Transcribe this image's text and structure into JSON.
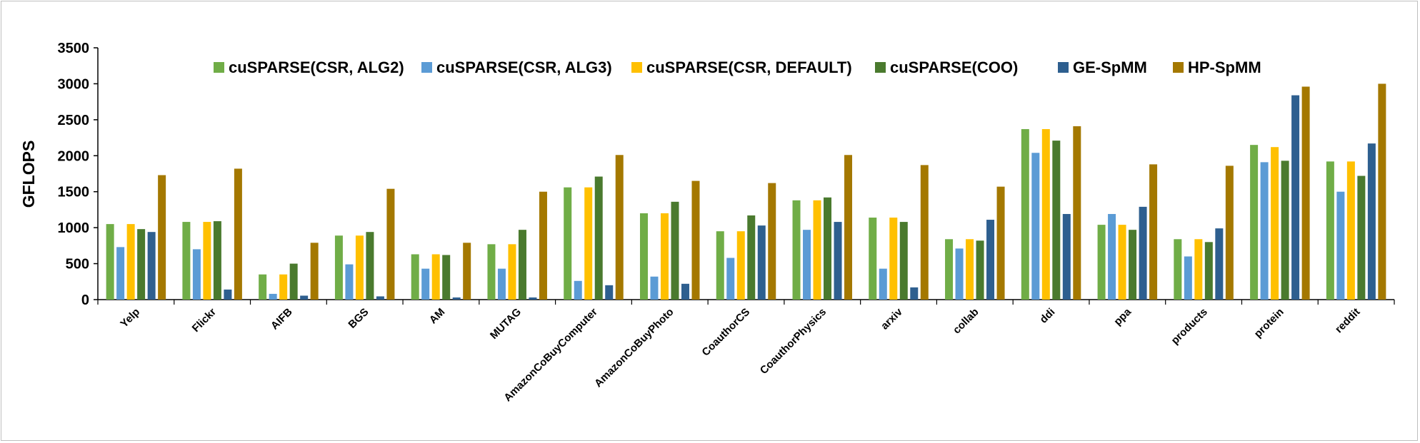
{
  "chart_data": {
    "type": "bar",
    "ylabel": "GFLOPS",
    "xlabel": "",
    "ylim": [
      0,
      3500
    ],
    "yticks": [
      0,
      500,
      1000,
      1500,
      2000,
      2500,
      3000,
      3500
    ],
    "legend_position": "top",
    "grid": false,
    "categories": [
      "Yelp",
      "Flickr",
      "AIFB",
      "BGS",
      "AM",
      "MUTAG",
      "AmazonCoBuyComputer",
      "AmazonCoBuyPhoto",
      "CoauthorCS",
      "CoauthorPhysics",
      "arxiv",
      "collab",
      "ddi",
      "ppa",
      "products",
      "protein",
      "reddit"
    ],
    "series": [
      {
        "name": "cuSPARSE(CSR, ALG2)",
        "color": "#70AD47",
        "values": [
          1050,
          1080,
          350,
          890,
          630,
          770,
          1560,
          1200,
          950,
          1380,
          1140,
          840,
          2370,
          1040,
          840,
          2150,
          1920
        ]
      },
      {
        "name": "cuSPARSE(CSR, ALG3)",
        "color": "#5B9BD5",
        "values": [
          730,
          700,
          80,
          490,
          430,
          430,
          260,
          320,
          580,
          970,
          430,
          710,
          2040,
          1190,
          600,
          1910,
          1500
        ]
      },
      {
        "name": "cuSPARSE(CSR, DEFAULT)",
        "color": "#FFC000",
        "values": [
          1050,
          1080,
          350,
          890,
          630,
          770,
          1560,
          1200,
          950,
          1380,
          1140,
          840,
          2370,
          1040,
          840,
          2120,
          1920
        ]
      },
      {
        "name": "cuSPARSE(COO)",
        "color": "#4A7A2E",
        "values": [
          980,
          1090,
          500,
          940,
          620,
          970,
          1710,
          1360,
          1170,
          1420,
          1080,
          820,
          2210,
          970,
          800,
          1930,
          1720
        ]
      },
      {
        "name": "GE-SpMM",
        "color": "#2E5F8F",
        "values": [
          940,
          140,
          55,
          45,
          30,
          30,
          200,
          220,
          1030,
          1080,
          170,
          1110,
          1190,
          1290,
          990,
          2840,
          2170
        ]
      },
      {
        "name": "HP-SpMM",
        "color": "#A47800",
        "values": [
          1730,
          1820,
          790,
          1540,
          790,
          1500,
          2010,
          1650,
          1620,
          2010,
          1870,
          1570,
          2410,
          1880,
          1860,
          2960,
          3000
        ]
      }
    ]
  }
}
